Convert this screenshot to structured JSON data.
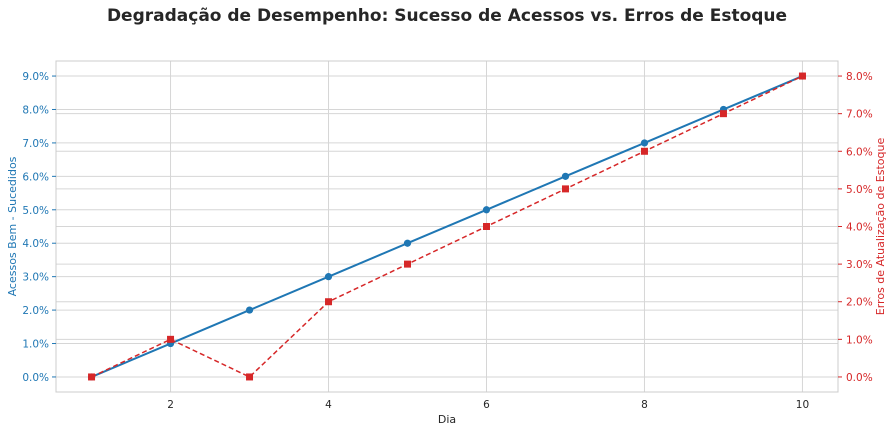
{
  "chart_data": {
    "type": "line",
    "title": "Degradação de Desempenho: Sucesso de Acessos vs. Erros de Estoque",
    "xlabel": "Dia",
    "ylabel_left": "Acessos Bem - Sucedidos",
    "ylabel_right": "Erros de Atualização de Estoque",
    "xlim": [
      0.55,
      10.45
    ],
    "ylim_left": [
      -0.0045,
      0.0945
    ],
    "ylim_right": [
      -0.004,
      0.084
    ],
    "x_ticks": [
      2,
      4,
      6,
      8,
      10
    ],
    "y_left_ticks": [
      0,
      0.01,
      0.02,
      0.03,
      0.04,
      0.05,
      0.06,
      0.07,
      0.08,
      0.09
    ],
    "y_right_ticks": [
      0,
      0.01,
      0.02,
      0.03,
      0.04,
      0.05,
      0.06,
      0.07,
      0.08
    ],
    "grid": true,
    "x": [
      1,
      2,
      3,
      4,
      5,
      6,
      7,
      8,
      9,
      10
    ],
    "series": [
      {
        "axis": "left",
        "color": "#1f77b4",
        "line_style": "solid",
        "marker": "circle",
        "values": [
          0.0,
          0.01,
          0.02,
          0.03,
          0.04,
          0.05,
          0.06,
          0.07,
          0.08,
          0.09
        ]
      },
      {
        "axis": "right",
        "color": "#d62728",
        "line_style": "dashed",
        "marker": "square",
        "values": [
          0.0,
          0.01,
          0.0,
          0.02,
          0.03,
          0.04,
          0.05,
          0.06,
          0.07,
          0.08
        ]
      }
    ],
    "colors": {
      "left_axis": "#1f77b4",
      "right_axis": "#d62728",
      "x_axis_text": "#262626"
    }
  }
}
